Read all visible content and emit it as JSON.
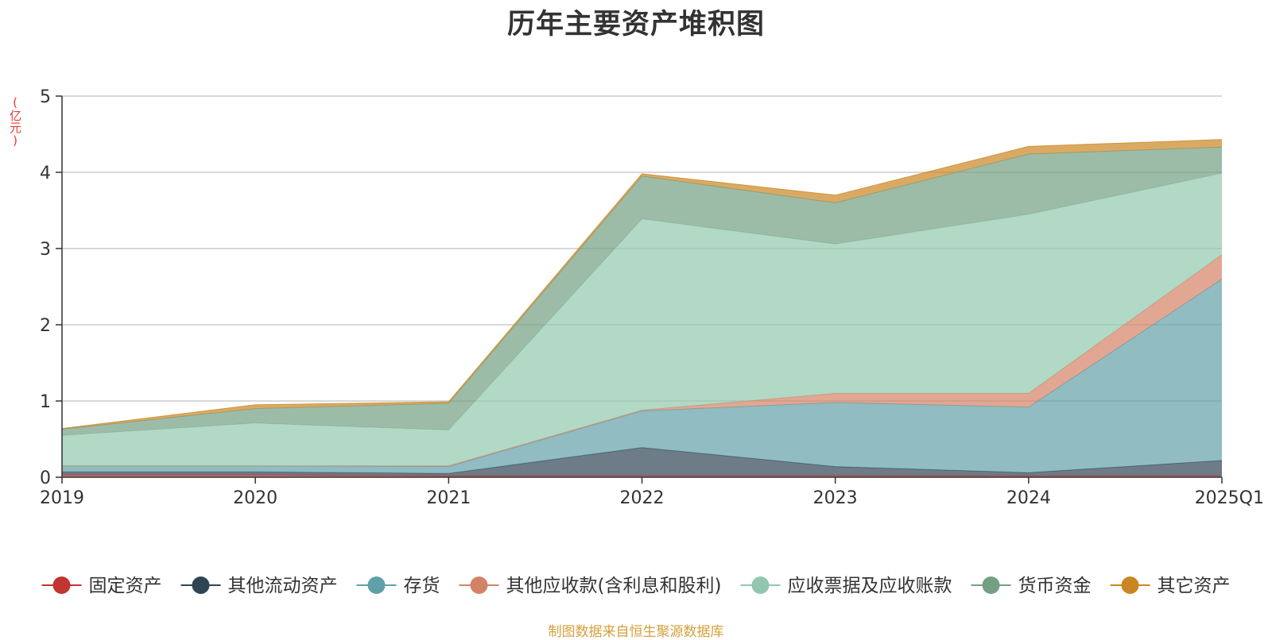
{
  "chart_data": {
    "type": "area",
    "stacked": true,
    "title": "历年主要资产堆积图",
    "ylabel": "(亿元)",
    "categories": [
      "2019",
      "2020",
      "2021",
      "2022",
      "2023",
      "2024",
      "2025Q1"
    ],
    "ylim": [
      0,
      5
    ],
    "yticks": [
      "0",
      "1",
      "2",
      "3",
      "4",
      "5"
    ],
    "grid": true,
    "legend_position": "bottom",
    "series": [
      {
        "name": "固定资产",
        "color": "#c23531",
        "values": [
          0.03,
          0.03,
          0.02,
          0.02,
          0.02,
          0.02,
          0.02
        ]
      },
      {
        "name": "其他流动资产",
        "color": "#2f4554",
        "values": [
          0.04,
          0.04,
          0.03,
          0.37,
          0.12,
          0.04,
          0.2
        ]
      },
      {
        "name": "存货",
        "color": "#61a0a8",
        "values": [
          0.08,
          0.08,
          0.09,
          0.48,
          0.84,
          0.86,
          2.38
        ]
      },
      {
        "name": "其他应收款(含利息和股利)",
        "color": "#d48265",
        "values": [
          0.0,
          0.0,
          0.01,
          0.01,
          0.12,
          0.18,
          0.32
        ]
      },
      {
        "name": "应收票据及应收账款",
        "color": "#91c7ae",
        "values": [
          0.4,
          0.56,
          0.47,
          2.51,
          1.96,
          2.35,
          1.07
        ]
      },
      {
        "name": "货币资金",
        "color": "#749f83",
        "values": [
          0.08,
          0.19,
          0.35,
          0.56,
          0.54,
          0.79,
          0.34
        ]
      },
      {
        "name": "其它资产",
        "color": "#ca8622",
        "values": [
          0.01,
          0.05,
          0.02,
          0.03,
          0.1,
          0.1,
          0.1
        ]
      }
    ]
  },
  "source_note": "制图数据来自恒生聚源数据库"
}
